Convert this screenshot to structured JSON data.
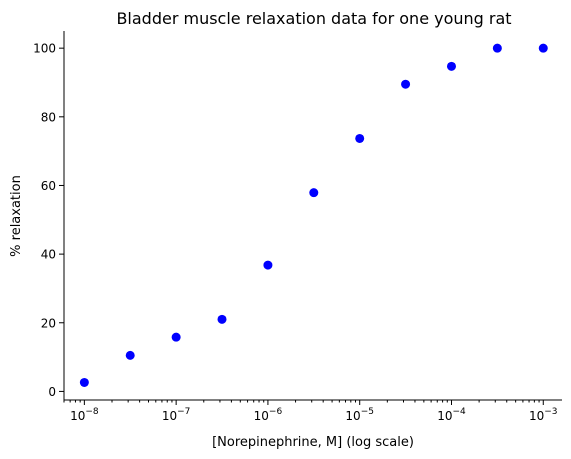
{
  "chart_data": {
    "type": "scatter",
    "title": "Bladder muscle relaxation data for one young rat",
    "xlabel": "[Norepinephrine, M] (log scale)",
    "ylabel": "% relaxation",
    "x_scale": "log",
    "xlim": [
      6e-09,
      0.0016
    ],
    "ylim": [
      -2.5,
      105
    ],
    "x_major_ticks": [
      1e-08,
      1e-07,
      1e-06,
      1e-05,
      0.0001,
      0.001
    ],
    "x_tick_labels": [
      {
        "base": "10",
        "exp": "−8"
      },
      {
        "base": "10",
        "exp": "−7"
      },
      {
        "base": "10",
        "exp": "−6"
      },
      {
        "base": "10",
        "exp": "−5"
      },
      {
        "base": "10",
        "exp": "−4"
      },
      {
        "base": "10",
        "exp": "−3"
      }
    ],
    "y_ticks": [
      0,
      20,
      40,
      60,
      80,
      100
    ],
    "y_tick_labels": [
      "0",
      "20",
      "40",
      "60",
      "80",
      "100"
    ],
    "marker_color": "#0000ff",
    "grid": false,
    "x": [
      1e-08,
      3.16e-08,
      1e-07,
      3.16e-07,
      1e-06,
      3.16e-06,
      1e-05,
      3.16e-05,
      0.0001,
      0.000316,
      0.001
    ],
    "y": [
      2.6,
      10.5,
      15.8,
      21,
      36.8,
      57.9,
      73.7,
      89.5,
      94.7,
      100,
      100
    ]
  }
}
